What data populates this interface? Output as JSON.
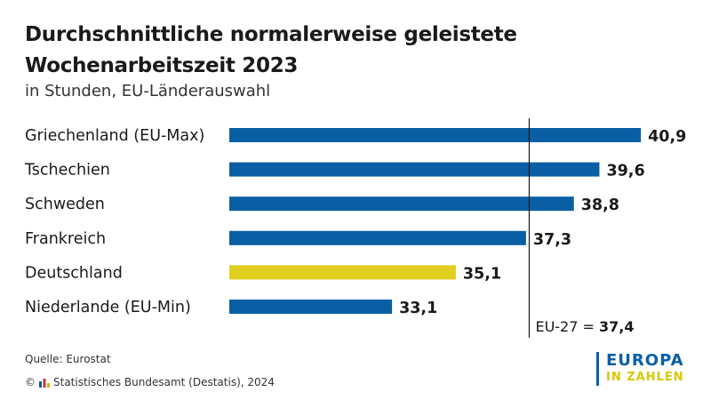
{
  "title": "Durchschnittliche normalerweise geleistete Wochenarbeitszeit 2023",
  "subtitle": "in Stunden, EU-Länderauswahl",
  "chart_data": {
    "type": "bar",
    "orientation": "horizontal",
    "title": "Durchschnittliche normalerweise geleistete Wochenarbeitszeit 2023",
    "subtitle": "in Stunden, EU-Länderauswahl",
    "categories": [
      "Griechenland (EU-Max)",
      "Tschechien",
      "Schweden",
      "Frankreich",
      "Deutschland",
      "Niederlande (EU-Min)"
    ],
    "values": [
      40.9,
      39.6,
      38.8,
      37.3,
      35.1,
      33.1
    ],
    "value_labels": [
      "40,9",
      "39,6",
      "38,8",
      "37,3",
      "35,1",
      "33,1"
    ],
    "bar_colors": [
      "#0a5fa4",
      "#0a5fa4",
      "#0a5fa4",
      "#0a5fa4",
      "#e0cf1e",
      "#0a5fa4"
    ],
    "reference_line": {
      "label": "EU-27 =",
      "value": 37.4,
      "value_label": "37,4"
    },
    "grid": false
  },
  "footer": {
    "source": "Quelle: Eurostat",
    "copyright_symbol": "©",
    "copyright": "Statistisches Bundesamt (Destatis), 2024"
  },
  "brand": {
    "line1": "EUROPA",
    "line2": "IN ZAHLEN"
  },
  "colors": {
    "blue": "#0a5fa4",
    "yellow": "#e0cf1e",
    "text": "#1a1a1a"
  }
}
